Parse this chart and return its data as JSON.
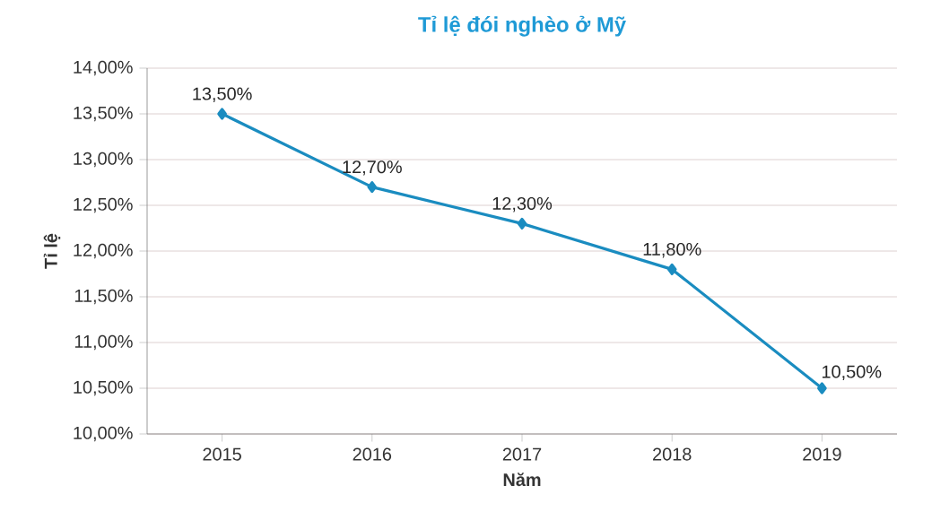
{
  "chart_data": {
    "type": "line",
    "title": "Tỉ lệ đói nghèo ở Mỹ",
    "xlabel": "Năm",
    "ylabel": "Tỉ lệ",
    "categories": [
      "2015",
      "2016",
      "2017",
      "2018",
      "2019"
    ],
    "series": [
      {
        "color": "#1a8cc0",
        "values": [
          13.5,
          12.7,
          12.3,
          11.8,
          10.5
        ],
        "value_labels": [
          "13,50%",
          "12,70%",
          "12,30%",
          "11,80%",
          "10,50%"
        ]
      }
    ],
    "ylim": [
      10,
      14
    ],
    "yticks": [
      {
        "value": 10,
        "label": "10,00%"
      },
      {
        "value": 10.5,
        "label": "10,50%"
      },
      {
        "value": 11,
        "label": "11,00%"
      },
      {
        "value": 11.5,
        "label": "11,50%"
      },
      {
        "value": 12,
        "label": "12,00%"
      },
      {
        "value": 12.5,
        "label": "12,50%"
      },
      {
        "value": 13,
        "label": "13,00%"
      },
      {
        "value": 13.5,
        "label": "13,50%"
      },
      {
        "value": 14,
        "label": "14,00%"
      }
    ],
    "grid": "y",
    "marker": "diamond",
    "line_style": "solid"
  }
}
